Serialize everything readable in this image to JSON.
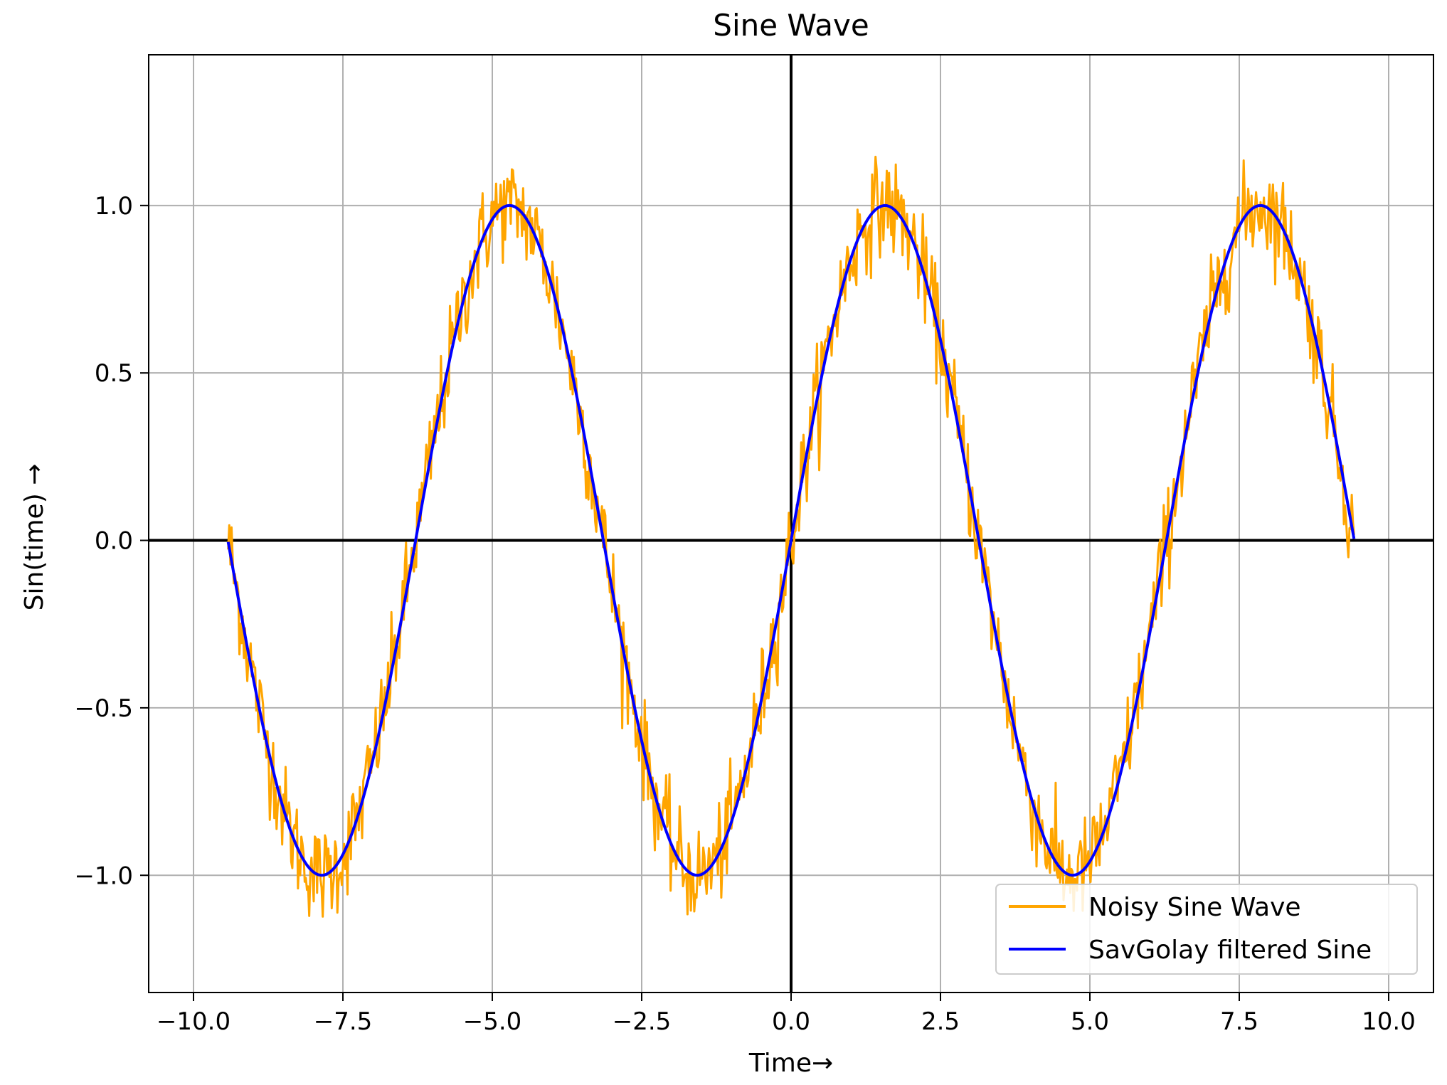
{
  "chart_data": {
    "type": "line",
    "title": "Sine Wave",
    "xlabel": "Time→",
    "ylabel": "Sin(time) →",
    "xlim": [
      -10.75,
      10.75
    ],
    "ylim": [
      -1.35,
      1.45
    ],
    "xticks": [
      -10.0,
      -7.5,
      -5.0,
      -2.5,
      0.0,
      2.5,
      5.0,
      7.5,
      10.0
    ],
    "xtick_labels": [
      "−10.0",
      "−7.5",
      "−5.0",
      "−2.5",
      "0.0",
      "2.5",
      "5.0",
      "7.5",
      "10.0"
    ],
    "yticks": [
      -1.0,
      -0.5,
      0.0,
      0.5,
      1.0
    ],
    "ytick_labels": [
      "−1.0",
      "−0.5",
      "0.0",
      "0.5",
      "1.0"
    ],
    "grid": true,
    "zero_lines": true,
    "legend_position": "lower-right",
    "series": [
      {
        "name": "Noisy Sine Wave",
        "color": "#FFA500",
        "function": "sin(x) + noise",
        "x_range": [
          -9.42,
          9.42
        ],
        "noise_amplitude": 0.12
      },
      {
        "name": "SavGolay filtered Sine",
        "color": "#0000FF",
        "function": "sin(x)",
        "x_range": [
          -9.42,
          9.42
        ]
      }
    ]
  }
}
